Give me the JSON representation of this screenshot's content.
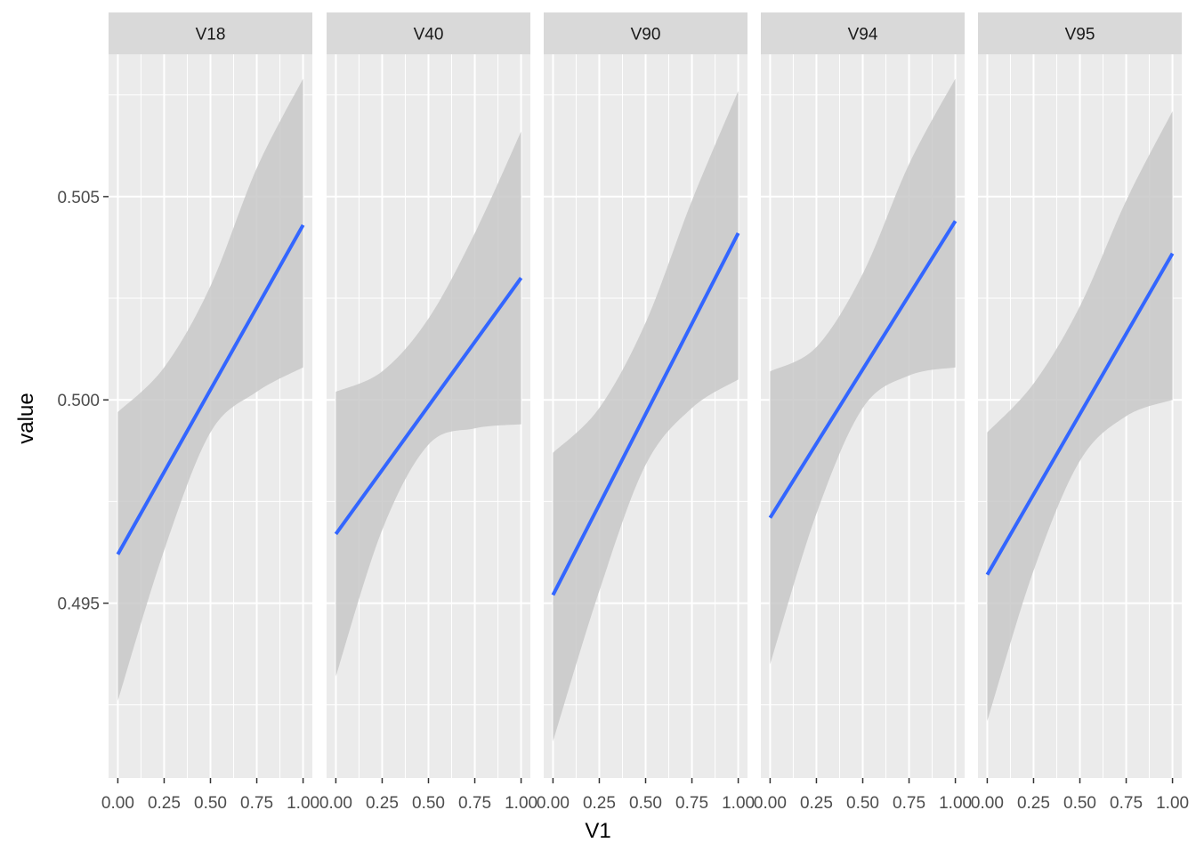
{
  "chart_data": {
    "type": "line",
    "xlabel": "V1",
    "ylabel": "value",
    "ylim": [
      0.4907,
      0.5085
    ],
    "y_ticks": [
      0.495,
      0.5,
      0.505
    ],
    "y_tick_labels": [
      "0.495",
      "0.500",
      "0.505"
    ],
    "x_ticks": [
      0,
      0.25,
      0.5,
      0.75,
      1
    ],
    "x_tick_labels": [
      "0.00",
      "0.25",
      "0.50",
      "0.75",
      "1.00"
    ],
    "xlim": [
      -0.05,
      1.05
    ],
    "grid": true,
    "colors": {
      "line": "#3366FF",
      "ribbon": "#C8C8C8",
      "panel_background": "#EBEBEB",
      "strip_background": "#D9D9D9",
      "grid": "#FFFFFF",
      "axis_text": "#4D4D4D"
    },
    "panels": [
      {
        "name": "V18",
        "line": {
          "x": [
            0,
            1
          ],
          "y": [
            0.4962,
            0.5043
          ]
        },
        "ribbon": {
          "x": [
            0,
            0.25,
            0.5,
            0.75,
            1
          ],
          "lower": [
            0.4926,
            0.4963,
            0.4992,
            0.5002,
            0.5008
          ],
          "upper": [
            0.4997,
            0.5008,
            0.5028,
            0.5057,
            0.5079
          ]
        }
      },
      {
        "name": "V40",
        "line": {
          "x": [
            0,
            1
          ],
          "y": [
            0.4967,
            0.503
          ]
        },
        "ribbon": {
          "x": [
            0,
            0.25,
            0.5,
            0.75,
            1
          ],
          "lower": [
            0.4932,
            0.4968,
            0.4989,
            0.4993,
            0.4994
          ],
          "upper": [
            0.5002,
            0.5007,
            0.502,
            0.5041,
            0.5066
          ]
        }
      },
      {
        "name": "V90",
        "line": {
          "x": [
            0,
            1
          ],
          "y": [
            0.4952,
            0.5041
          ]
        },
        "ribbon": {
          "x": [
            0,
            0.25,
            0.5,
            0.75,
            1
          ],
          "lower": [
            0.4916,
            0.4953,
            0.4984,
            0.4998,
            0.5005
          ],
          "upper": [
            0.4987,
            0.4998,
            0.5019,
            0.5049,
            0.5076
          ]
        }
      },
      {
        "name": "V94",
        "line": {
          "x": [
            0,
            1
          ],
          "y": [
            0.4971,
            0.5044
          ]
        },
        "ribbon": {
          "x": [
            0,
            0.25,
            0.5,
            0.75,
            1
          ],
          "lower": [
            0.4935,
            0.4972,
            0.4998,
            0.5006,
            0.5008
          ],
          "upper": [
            0.5007,
            0.5013,
            0.5031,
            0.5058,
            0.5079
          ]
        }
      },
      {
        "name": "V95",
        "line": {
          "x": [
            0,
            1
          ],
          "y": [
            0.4957,
            0.5036
          ]
        },
        "ribbon": {
          "x": [
            0,
            0.25,
            0.5,
            0.75,
            1
          ],
          "lower": [
            0.4921,
            0.4958,
            0.4985,
            0.4996,
            0.5
          ],
          "upper": [
            0.4992,
            0.5004,
            0.5023,
            0.5049,
            0.5071
          ]
        }
      }
    ]
  }
}
